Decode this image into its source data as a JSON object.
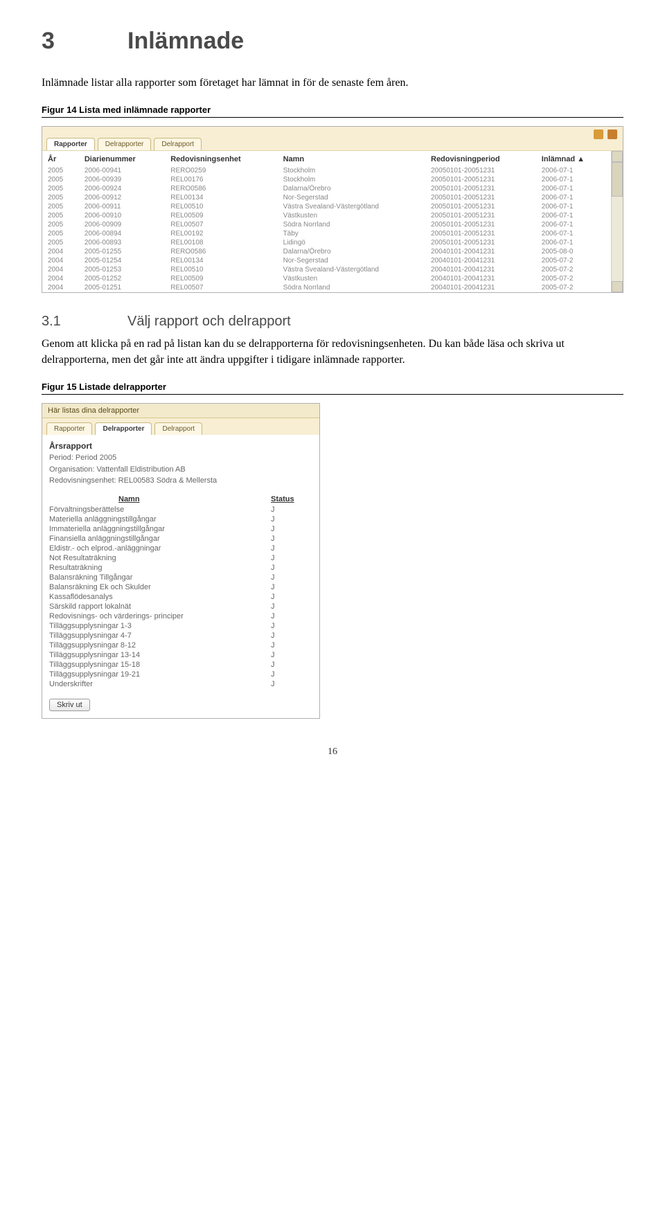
{
  "heading": {
    "num": "3",
    "title": "Inlämnade"
  },
  "intro": "Inlämnade listar alla rapporter som företaget har lämnat in för de senaste fem åren.",
  "fig14_caption": "Figur 14 Lista med inlämnade rapporter",
  "ss1": {
    "tabs": [
      "Rapporter",
      "Delrapporter",
      "Delrapport"
    ],
    "columns": [
      "År",
      "Diarienummer",
      "Redovisningsenhet",
      "Namn",
      "Redovisningperiod",
      "Inlämnad"
    ],
    "rows": [
      [
        "2005",
        "2006-00941",
        "RERO0259",
        "Stockholm",
        "20050101-20051231",
        "2006-07-1"
      ],
      [
        "2005",
        "2006-00939",
        "REL00176",
        "Stockholm",
        "20050101-20051231",
        "2006-07-1"
      ],
      [
        "2005",
        "2006-00924",
        "RERO0586",
        "Dalarna/Örebro",
        "20050101-20051231",
        "2006-07-1"
      ],
      [
        "2005",
        "2006-00912",
        "REL00134",
        "Nor-Segerstad",
        "20050101-20051231",
        "2006-07-1"
      ],
      [
        "2005",
        "2006-00911",
        "REL00510",
        "Västra Svealand-Västergötland",
        "20050101-20051231",
        "2006-07-1"
      ],
      [
        "2005",
        "2006-00910",
        "REL00509",
        "Västkusten",
        "20050101-20051231",
        "2006-07-1"
      ],
      [
        "2005",
        "2006-00909",
        "REL00507",
        "Södra Norrland",
        "20050101-20051231",
        "2006-07-1"
      ],
      [
        "2005",
        "2006-00894",
        "REL00192",
        "Täby",
        "20050101-20051231",
        "2006-07-1"
      ],
      [
        "2005",
        "2006-00893",
        "REL00108",
        "Lidingö",
        "20050101-20051231",
        "2006-07-1"
      ],
      [
        "2004",
        "2005-01255",
        "RERO0586",
        "Dalarna/Örebro",
        "20040101-20041231",
        "2005-08-0"
      ],
      [
        "2004",
        "2005-01254",
        "REL00134",
        "Nor-Segerstad",
        "20040101-20041231",
        "2005-07-2"
      ],
      [
        "2004",
        "2005-01253",
        "REL00510",
        "Västra Svealand-Västergötland",
        "20040101-20041231",
        "2005-07-2"
      ],
      [
        "2004",
        "2005-01252",
        "REL00509",
        "Västkusten",
        "20040101-20041231",
        "2005-07-2"
      ],
      [
        "2004",
        "2005-01251",
        "REL00507",
        "Södra Norrland",
        "20040101-20041231",
        "2005-07-2"
      ]
    ],
    "sort_col": "Inlämnad"
  },
  "sub": {
    "num": "3.1",
    "title": "Välj rapport och delrapport"
  },
  "para2": "Genom att klicka på en rad på listan kan du se delrapporterna för redovisningsenheten. Du kan både läsa och skriva ut delrapporterna, men det går inte att ändra uppgifter i tidigare inlämnade rapporter.",
  "fig15_caption": "Figur 15 Listade delrapporter",
  "ss2": {
    "header_text": "Här listas dina delrapporter",
    "tabs": [
      "Rapporter",
      "Delrapporter",
      "Delrapport"
    ],
    "report_title": "Årsrapport",
    "period_label": "Period: Period 2005",
    "org_label": "Organisation: Vattenfall Eldistribution AB",
    "unit_label": "Redovisningsenhet: REL00583 Södra & Mellersta",
    "col_namn": "Namn",
    "col_status": "Status",
    "rows": [
      [
        "Förvaltningsberättelse",
        "J"
      ],
      [
        "Materiella anläggningstillgångar",
        "J"
      ],
      [
        "Immateriella anläggningstillgångar",
        "J"
      ],
      [
        "Finansiella anläggningstillgångar",
        "J"
      ],
      [
        "Eldistr.- och elprod.-anläggningar",
        "J"
      ],
      [
        "Not Resultaträkning",
        "J"
      ],
      [
        "Resultaträkning",
        "J"
      ],
      [
        "Balansräkning Tillgångar",
        "J"
      ],
      [
        "Balansräkning Ek och Skulder",
        "J"
      ],
      [
        "Kassaflödesanalys",
        "J"
      ],
      [
        "Särskild rapport lokalnät",
        "J"
      ],
      [
        "Redovisnings- och värderings- principer",
        "J"
      ],
      [
        "Tilläggsupplysningar 1-3",
        "J"
      ],
      [
        "Tilläggsupplysningar 4-7",
        "J"
      ],
      [
        "Tilläggsupplysningar 8-12",
        "J"
      ],
      [
        "Tilläggsupplysningar 13-14",
        "J"
      ],
      [
        "Tilläggsupplysningar 15-18",
        "J"
      ],
      [
        "Tilläggsupplysningar 19-21",
        "J"
      ],
      [
        "Underskrifter",
        "J"
      ]
    ],
    "print_label": "Skriv ut"
  },
  "page_number": "16"
}
